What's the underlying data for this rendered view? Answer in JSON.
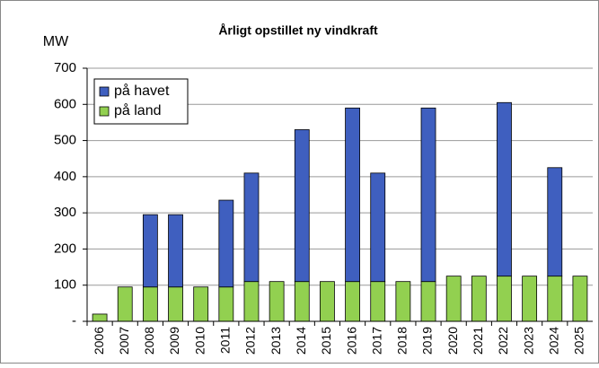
{
  "chart_data": {
    "type": "stacked_bar",
    "title": "Årligt opstillet ny vindkraft",
    "y_label": "MW",
    "categories": [
      "2006",
      "2007",
      "2008",
      "2009",
      "2010",
      "2011",
      "2012",
      "2013",
      "2014",
      "2015",
      "2016",
      "2017",
      "2018",
      "2019",
      "2020",
      "2021",
      "2022",
      "2023",
      "2024",
      "2025"
    ],
    "series": [
      {
        "name": "på land",
        "color": "#92d050",
        "values": [
          20,
          95,
          95,
          95,
          95,
          95,
          110,
          110,
          110,
          110,
          110,
          110,
          110,
          110,
          125,
          125,
          125,
          125,
          125,
          125
        ]
      },
      {
        "name": "på havet",
        "color": "#3f5fbf",
        "values": [
          0,
          0,
          200,
          200,
          0,
          240,
          300,
          0,
          420,
          0,
          480,
          300,
          0,
          480,
          0,
          0,
          480,
          0,
          300,
          0
        ]
      }
    ],
    "ylim": [
      0,
      700
    ],
    "yticks": [
      {
        "value": 0,
        "label": "-"
      },
      100,
      200,
      300,
      400,
      500,
      600,
      700
    ],
    "grid": true,
    "legend": "top-left"
  }
}
